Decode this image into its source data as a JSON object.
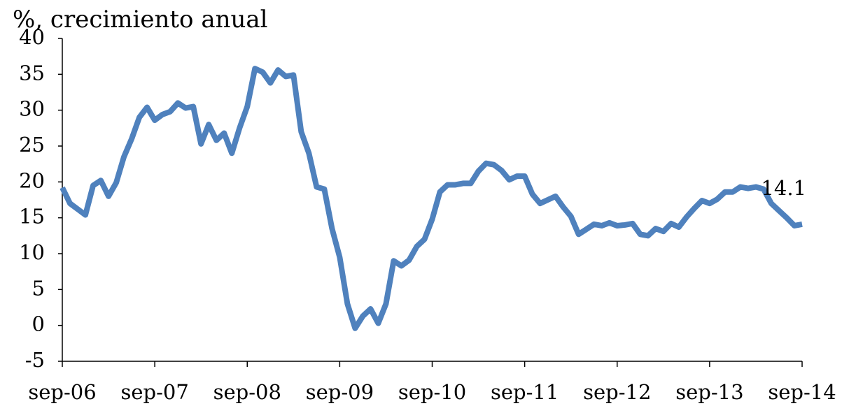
{
  "chart_data": {
    "type": "line",
    "title": "%, crecimiento anual",
    "categories": [
      "sep-06",
      null,
      null,
      null,
      null,
      null,
      null,
      null,
      null,
      null,
      null,
      null,
      "sep-07",
      null,
      null,
      null,
      null,
      null,
      null,
      null,
      null,
      null,
      null,
      null,
      "sep-08",
      null,
      null,
      null,
      null,
      null,
      null,
      null,
      null,
      null,
      null,
      null,
      "sep-09",
      null,
      null,
      null,
      null,
      null,
      null,
      null,
      null,
      null,
      null,
      null,
      "sep-10",
      null,
      null,
      null,
      null,
      null,
      null,
      null,
      null,
      null,
      null,
      null,
      "sep-11",
      null,
      null,
      null,
      null,
      null,
      null,
      null,
      null,
      null,
      null,
      null,
      "sep-12",
      null,
      null,
      null,
      null,
      null,
      null,
      null,
      null,
      null,
      null,
      null,
      "sep-13",
      null,
      null,
      null,
      null,
      null,
      null,
      null,
      null,
      null,
      null,
      null,
      "sep-14"
    ],
    "values": [
      19.2,
      17,
      16.2,
      15.4,
      19.5,
      20.2,
      18,
      19.9,
      23.5,
      26,
      29,
      30.4,
      28.6,
      29.4,
      29.8,
      31,
      30.3,
      30.5,
      25.3,
      28,
      25.8,
      26.8,
      24,
      27.5,
      30.5,
      35.8,
      35.3,
      33.8,
      35.6,
      34.7,
      34.9,
      27,
      24,
      19.3,
      19,
      13.5,
      9.5,
      3,
      -0.4,
      1.3,
      2.3,
      0.3,
      3,
      9,
      8.3,
      9.1,
      11,
      12,
      14.8,
      18.6,
      19.6,
      19.6,
      19.8,
      19.8,
      21.5,
      22.6,
      22.4,
      21.6,
      20.3,
      20.8,
      20.8,
      18.3,
      17,
      17.5,
      18,
      16.5,
      15.2,
      12.7,
      13.4,
      14.1,
      13.9,
      14.3,
      13.9,
      14,
      14.2,
      12.7,
      12.5,
      13.5,
      13.1,
      14.2,
      13.7,
      15.1,
      16.3,
      17.4,
      17,
      17.6,
      18.6,
      18.6,
      19.3,
      19.1,
      19.3,
      19,
      17,
      16,
      15,
      13.9,
      14.1
    ],
    "color": "#4f81bd",
    "ylim": [
      -5,
      40
    ],
    "yticks": [
      -5,
      0,
      5,
      10,
      15,
      20,
      25,
      30,
      35,
      40
    ],
    "grid": false
  }
}
